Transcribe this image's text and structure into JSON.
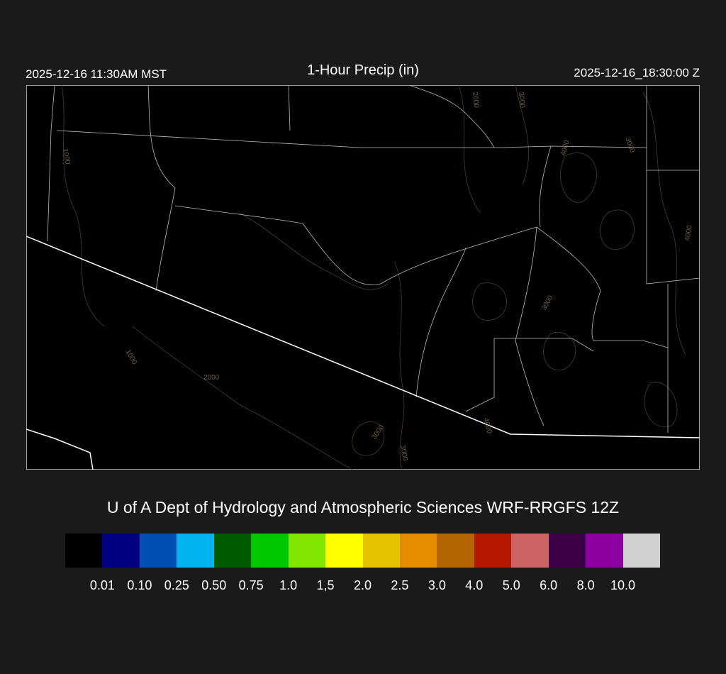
{
  "header": {
    "local_time": "2025-12-16 11:30AM MST",
    "title": "1-Hour Precip (in)",
    "utc_time": "2025-12-16_18:30:00 Z"
  },
  "map": {
    "contour_labels": [
      "1000",
      "2000",
      "3000",
      "4000",
      "3000",
      "4000",
      "3000",
      "1000",
      "2000",
      "3000",
      "3000",
      "4000"
    ],
    "colors": {
      "background": "#000000",
      "border": "#ffffff",
      "state_lines": "#bbbbbb",
      "terrain_contours": "#5a4a3a"
    }
  },
  "credit": "U of A Dept of Hydrology and Atmospheric Sciences WRF-RRGFS 12Z",
  "colorbar": {
    "colors": [
      "#000000",
      "#000080",
      "#0050b4",
      "#00b4f0",
      "#005a00",
      "#00c800",
      "#80e600",
      "#ffff00",
      "#e6c300",
      "#e68c00",
      "#b46400",
      "#b41900",
      "#cd6464",
      "#3c0046",
      "#8c00a0",
      "#d2d2d2"
    ],
    "labels": [
      "0.01",
      "0.10",
      "0.25",
      "0.50",
      "0.75",
      "1.0",
      "1,5",
      "2.0",
      "2.5",
      "3.0",
      "4.0",
      "5.0",
      "6.0",
      "8.0",
      "10.0"
    ]
  }
}
